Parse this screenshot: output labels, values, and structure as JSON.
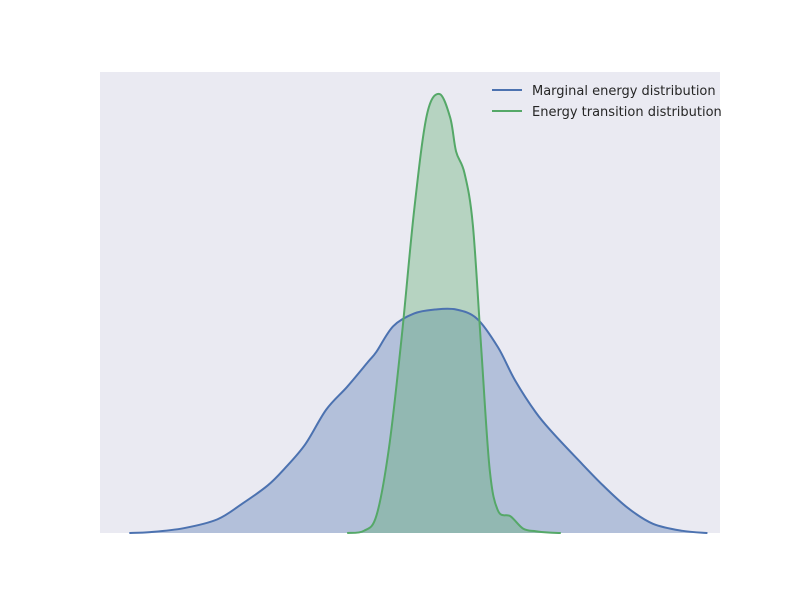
{
  "chart_data": {
    "type": "area",
    "title": "",
    "xlabel": "",
    "ylabel": "",
    "xlim": [
      -4.2,
      3.2
    ],
    "ylim": [
      0,
      1.05
    ],
    "grid": false,
    "axes_ticks_visible": false,
    "background": "#eaeaf2",
    "legend": {
      "placement": "top-right"
    },
    "series": [
      {
        "name": "Marginal energy distribution",
        "color": "#4c72b0",
        "fill_color": "#4c72b0",
        "fill_opacity": 0.35,
        "x": [
          -3.85,
          -3.6,
          -3.2,
          -2.8,
          -2.5,
          -2.2,
          -2.0,
          -1.75,
          -1.5,
          -1.25,
          -1.0,
          -0.9,
          -0.7,
          -0.45,
          -0.2,
          0.05,
          0.3,
          0.55,
          0.75,
          1.0,
          1.2,
          1.5,
          1.8,
          2.1,
          2.4,
          2.75,
          3.05
        ],
        "values": [
          0.0,
          0.002,
          0.011,
          0.031,
          0.067,
          0.108,
          0.146,
          0.202,
          0.281,
          0.333,
          0.39,
          0.413,
          0.471,
          0.5,
          0.509,
          0.509,
          0.488,
          0.423,
          0.349,
          0.275,
          0.229,
          0.168,
          0.109,
          0.057,
          0.021,
          0.005,
          0.0
        ]
      },
      {
        "name": "Energy transition distribution",
        "color": "#55a868",
        "fill_color": "#55a868",
        "fill_opacity": 0.35,
        "x": [
          -1.25,
          -1.05,
          -0.9,
          -0.75,
          -0.6,
          -0.45,
          -0.3,
          -0.15,
          -0.02,
          0.05,
          0.15,
          0.25,
          0.35,
          0.45,
          0.55,
          0.7,
          0.85,
          1.0,
          1.15,
          1.3
        ],
        "values": [
          0.0,
          0.005,
          0.04,
          0.195,
          0.445,
          0.736,
          0.951,
          1.0,
          0.946,
          0.869,
          0.82,
          0.702,
          0.421,
          0.147,
          0.051,
          0.038,
          0.01,
          0.004,
          0.001,
          0.0
        ]
      }
    ]
  }
}
